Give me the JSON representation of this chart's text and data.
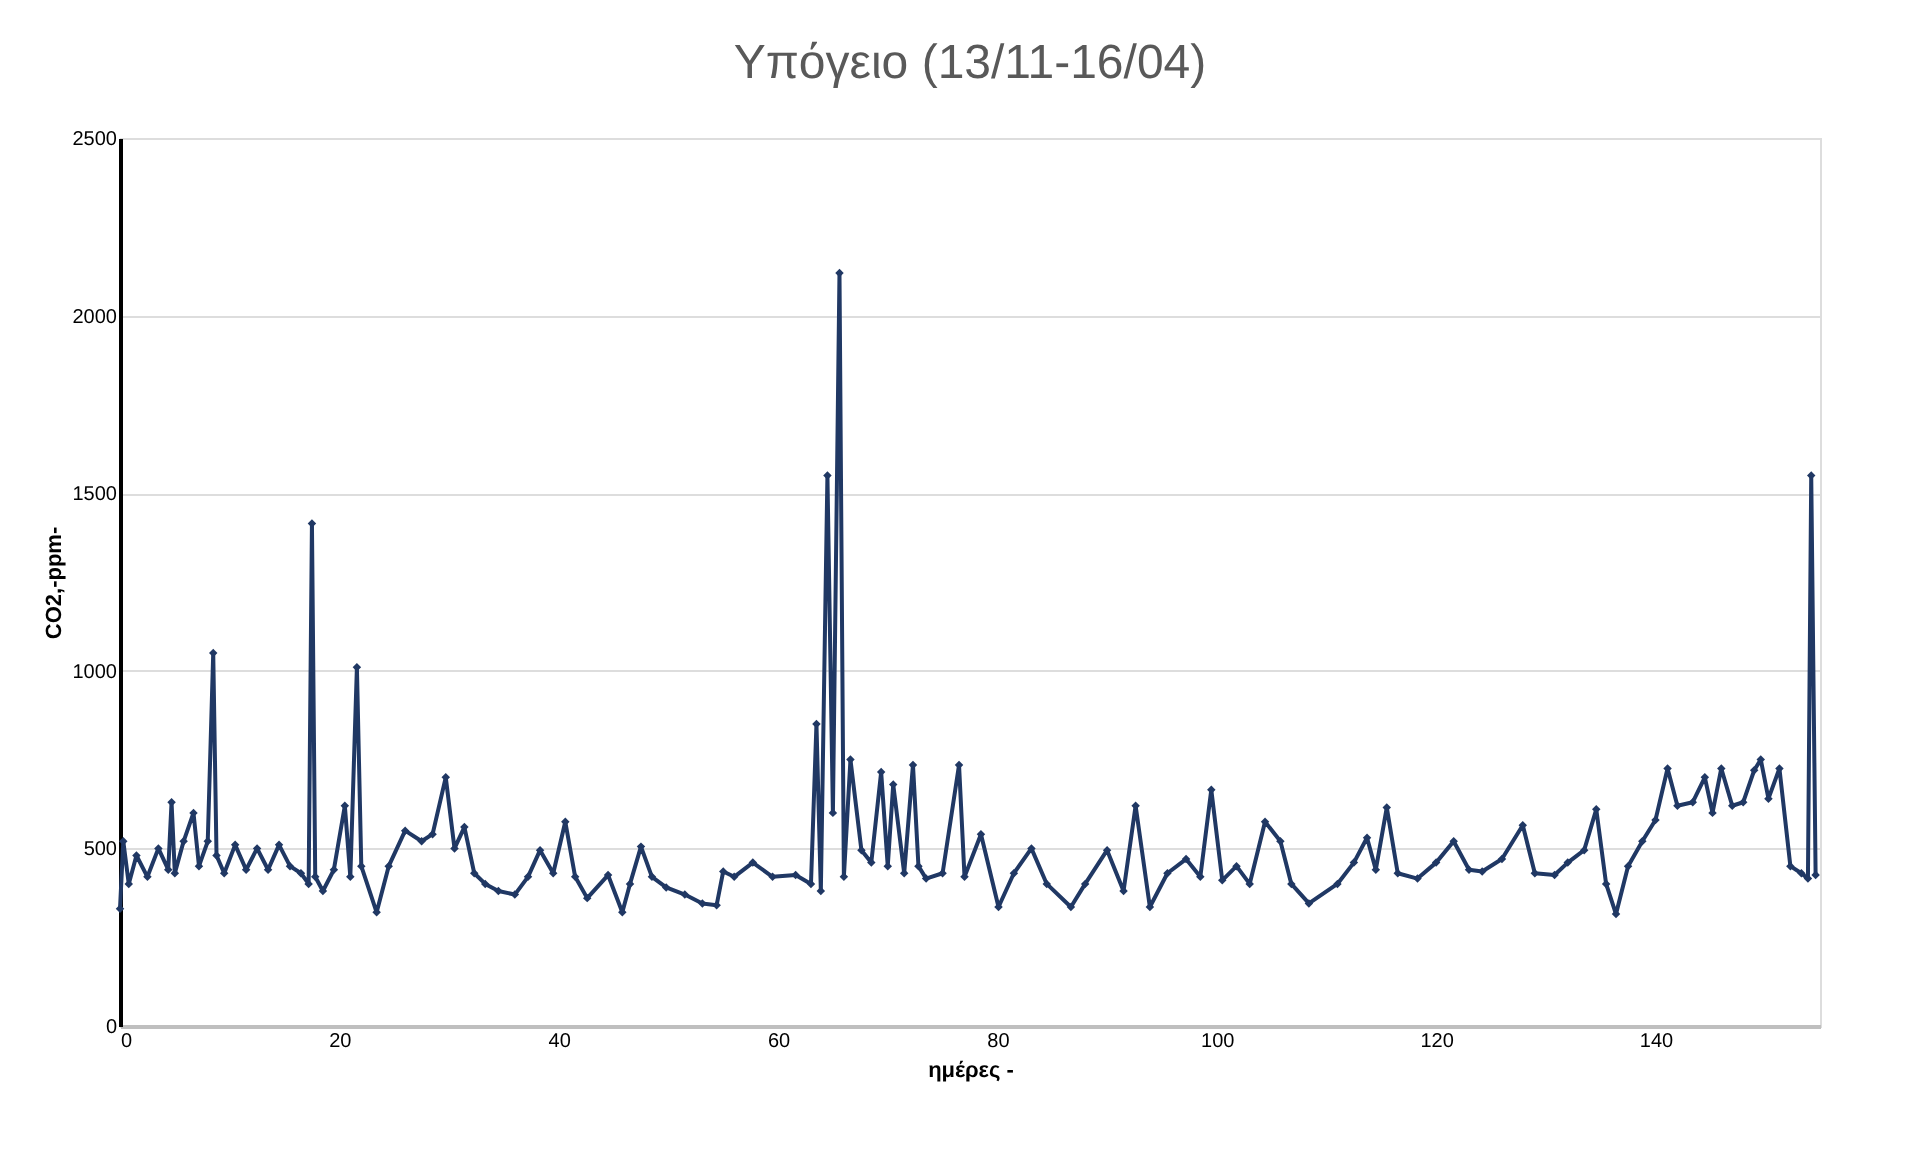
{
  "chart_data": {
    "type": "line",
    "title": "Υπόγειο (13/11-16/04)",
    "xlabel": "ημέρες -",
    "ylabel": "CO2,-ppm-",
    "xlim": [
      0,
      155
    ],
    "xticks": [
      0,
      20,
      40,
      60,
      80,
      100,
      120,
      140
    ],
    "ylim": [
      0,
      2500
    ],
    "yticks": [
      0,
      500,
      1000,
      1500,
      2000,
      2500
    ],
    "grid": "y",
    "marker": "diamond",
    "line_style": "solid",
    "series": [
      {
        "color": "#203864",
        "x": [
          0,
          0.3,
          0.8,
          1.5,
          2.5,
          3.5,
          4.4,
          4.7,
          5,
          5.8,
          6.7,
          7.2,
          8,
          8.5,
          8.8,
          9.5,
          10.5,
          11.5,
          12.5,
          13.5,
          14.5,
          15.5,
          16.5,
          17.2,
          17.5,
          17.8,
          18.5,
          19.5,
          20.5,
          21,
          21.6,
          22,
          23.4,
          24.5,
          26,
          27.5,
          28.5,
          29.7,
          30.5,
          31.4,
          32.3,
          33.3,
          34.5,
          36,
          37.2,
          38.3,
          39.5,
          40.6,
          41.5,
          42.6,
          44.5,
          45.8,
          46.5,
          47.5,
          48.5,
          49.8,
          51.5,
          53.1,
          54.4,
          55,
          56,
          57.7,
          59.5,
          61.6,
          63,
          63.5,
          63.9,
          64.5,
          65,
          65.6,
          66,
          66.6,
          67.6,
          68.5,
          69.4,
          70,
          70.5,
          71.5,
          72.3,
          72.8,
          73.5,
          75,
          76.5,
          77,
          78.5,
          80.1,
          81.5,
          83.1,
          84.5,
          86.7,
          88,
          90,
          91.5,
          92.6,
          93.9,
          95.5,
          97.2,
          98.5,
          99.5,
          100.5,
          101.8,
          103,
          104.4,
          105.8,
          106.8,
          108.4,
          111,
          112.5,
          113.7,
          114.5,
          115.5,
          116.5,
          118.3,
          120,
          121.6,
          123,
          124.2,
          126,
          127.9,
          129,
          130.8,
          132,
          133.5,
          134.6,
          135.5,
          136.4,
          137.5,
          138.8,
          140,
          141.1,
          142,
          143.4,
          144.5,
          145.2,
          146,
          147,
          148,
          149,
          149.6,
          150.3,
          151.3,
          152.3,
          153.3,
          153.9,
          154.2,
          154.6
        ],
        "values": [
          330,
          520,
          400,
          480,
          420,
          500,
          440,
          630,
          430,
          520,
          600,
          450,
          520,
          1050,
          480,
          430,
          510,
          440,
          500,
          440,
          510,
          450,
          430,
          400,
          1415,
          420,
          380,
          440,
          620,
          420,
          1010,
          450,
          320,
          450,
          550,
          520,
          540,
          700,
          500,
          560,
          430,
          400,
          380,
          370,
          420,
          495,
          430,
          575,
          420,
          360,
          425,
          320,
          400,
          505,
          420,
          390,
          370,
          345,
          340,
          435,
          420,
          460,
          420,
          425,
          400,
          850,
          380,
          1550,
          600,
          2120,
          420,
          750,
          495,
          460,
          715,
          450,
          680,
          430,
          735,
          450,
          415,
          430,
          735,
          420,
          540,
          335,
          430,
          500,
          400,
          335,
          400,
          495,
          380,
          620,
          335,
          430,
          470,
          420,
          665,
          410,
          450,
          400,
          575,
          520,
          400,
          345,
          400,
          460,
          530,
          440,
          615,
          430,
          415,
          460,
          520,
          440,
          435,
          470,
          565,
          430,
          425,
          460,
          495,
          610,
          400,
          315,
          450,
          520,
          580,
          725,
          620,
          630,
          700,
          600,
          725,
          620,
          630,
          720,
          750,
          640,
          725,
          450,
          430,
          415,
          1550,
          425
        ]
      }
    ]
  }
}
